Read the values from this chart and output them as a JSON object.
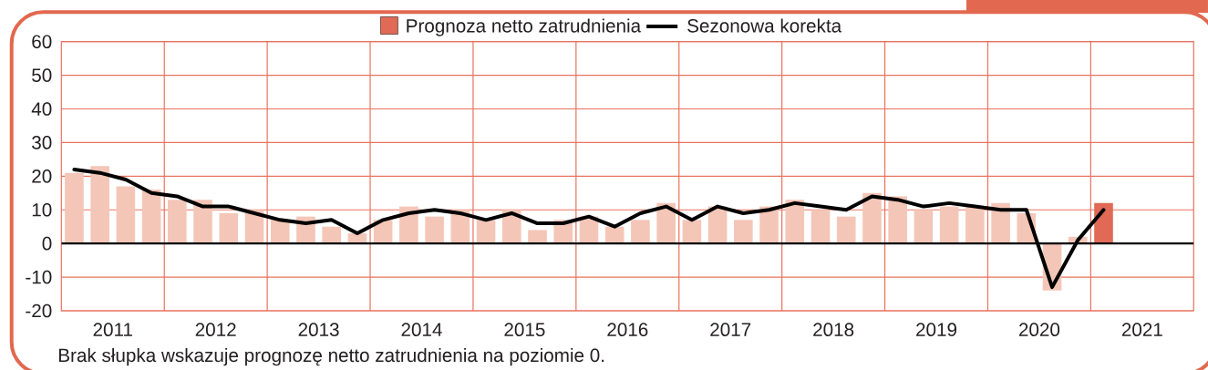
{
  "chart_data": {
    "type": "bar",
    "legend": "top",
    "grid": true,
    "x": [
      2011.125,
      2011.375,
      2011.625,
      2011.875,
      2012.125,
      2012.375,
      2012.625,
      2012.875,
      2013.125,
      2013.375,
      2013.625,
      2013.875,
      2014.125,
      2014.375,
      2014.625,
      2014.875,
      2015.125,
      2015.375,
      2015.625,
      2015.875,
      2016.125,
      2016.375,
      2016.625,
      2016.875,
      2017.125,
      2017.375,
      2017.625,
      2017.875,
      2018.125,
      2018.375,
      2018.625,
      2018.875,
      2019.125,
      2019.375,
      2019.625,
      2019.875,
      2020.125,
      2020.375,
      2020.625,
      2020.875,
      2021.125
    ],
    "xlim": [
      2011,
      2022
    ],
    "xticks": [
      {
        "value": 2011.5,
        "label": "2011"
      },
      {
        "value": 2012,
        "label": null
      },
      {
        "value": 2012.5,
        "label": "2012"
      },
      {
        "value": 2013,
        "label": null
      },
      {
        "value": 2013.5,
        "label": "2013"
      },
      {
        "value": 2014,
        "label": null
      },
      {
        "value": 2014.5,
        "label": "2014"
      },
      {
        "value": 2015,
        "label": null
      },
      {
        "value": 2015.5,
        "label": "2015"
      },
      {
        "value": 2016,
        "label": null
      },
      {
        "value": 2016.5,
        "label": "2016"
      },
      {
        "value": 2017,
        "label": null
      },
      {
        "value": 2017.5,
        "label": "2017"
      },
      {
        "value": 2018,
        "label": null
      },
      {
        "value": 2018.5,
        "label": "2018"
      },
      {
        "value": 2019,
        "label": null
      },
      {
        "value": 2019.5,
        "label": "2019"
      },
      {
        "value": 2020,
        "label": null
      },
      {
        "value": 2020.5,
        "label": "2020"
      },
      {
        "value": 2021,
        "label": null
      },
      {
        "value": 2021.5,
        "label": "2021"
      }
    ],
    "ylim": [
      -20,
      60
    ],
    "yticks": [
      -20,
      -10,
      0,
      10,
      20,
      30,
      40,
      50,
      60
    ],
    "series": [
      {
        "color": "#f4c6b7",
        "values": [
          21,
          23,
          17,
          16,
          13,
          13,
          9,
          10,
          7,
          8,
          5,
          3,
          7,
          11,
          8,
          10,
          7,
          10,
          4,
          7,
          8,
          5,
          7,
          12,
          7,
          11,
          7,
          11,
          13,
          10,
          8,
          15,
          14,
          10,
          11,
          11,
          12,
          9,
          -14,
          2,
          null
        ]
      },
      {
        "name": "Prognoza netto zatrudnienia",
        "color": "#e06a56",
        "values": [
          null,
          null,
          null,
          null,
          null,
          null,
          null,
          null,
          null,
          null,
          null,
          null,
          null,
          null,
          null,
          null,
          null,
          null,
          null,
          null,
          null,
          null,
          null,
          null,
          null,
          null,
          null,
          null,
          null,
          null,
          null,
          null,
          null,
          null,
          null,
          null,
          null,
          null,
          null,
          null,
          12
        ]
      },
      {
        "name": "Sezonowa korekta",
        "type": "line",
        "color": "#000000",
        "values": [
          22,
          21,
          19,
          15,
          14,
          11,
          11,
          9,
          7,
          6,
          7,
          3,
          7,
          9,
          10,
          9,
          7,
          9,
          6,
          6,
          8,
          5,
          9,
          11,
          7,
          11,
          9,
          10,
          12,
          11,
          10,
          14,
          13,
          11,
          12,
          11,
          10,
          10,
          -13,
          1,
          10
        ]
      }
    ],
    "ref_lines": [
      {
        "axis": "y",
        "value": 0,
        "color": "#000000"
      }
    ],
    "annotations": [
      "Brak słupka wskazuje prognozę netto zatrudnienia na poziomie 0."
    ]
  }
}
